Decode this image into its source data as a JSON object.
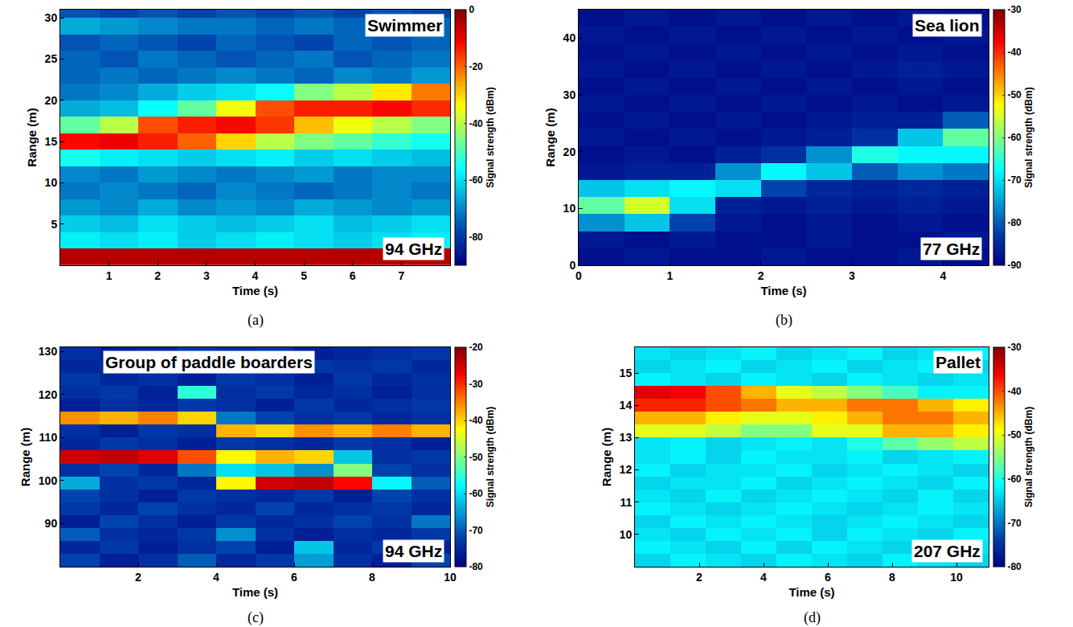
{
  "chart_data": [
    {
      "type": "heatmap",
      "title": "Swimmer",
      "annotations": [
        "94 GHz"
      ],
      "label": "(a)",
      "x_label": "Time (s)",
      "y_label": "Range (m)",
      "xlim": [
        0,
        8
      ],
      "xticks": [
        1,
        2,
        3,
        4,
        5,
        6,
        7
      ],
      "ylim": [
        0,
        31
      ],
      "yticks": [
        5,
        10,
        15,
        20,
        25,
        30
      ],
      "x": [
        0.4,
        1.2,
        2.0,
        2.8,
        3.6,
        4.4,
        5.2,
        6.0,
        6.8,
        7.6
      ],
      "y": [
        1,
        3,
        5,
        7,
        9,
        11,
        13,
        15,
        17,
        19,
        21,
        23,
        25,
        27,
        29,
        31
      ],
      "z": [
        [
          -5,
          -5,
          -5,
          -5,
          -5,
          -5,
          -5,
          -5,
          -5,
          -5
        ],
        [
          -58,
          -60,
          -58,
          -62,
          -60,
          -58,
          -60,
          -62,
          -60,
          -58
        ],
        [
          -62,
          -64,
          -60,
          -62,
          -64,
          -62,
          -60,
          -64,
          -62,
          -60
        ],
        [
          -68,
          -70,
          -66,
          -70,
          -68,
          -70,
          -66,
          -68,
          -70,
          -68
        ],
        [
          -72,
          -70,
          -72,
          -74,
          -70,
          -72,
          -74,
          -72,
          -70,
          -72
        ],
        [
          -70,
          -72,
          -68,
          -70,
          -72,
          -70,
          -68,
          -72,
          -70,
          -70
        ],
        [
          -55,
          -58,
          -60,
          -62,
          -60,
          -58,
          -62,
          -60,
          -62,
          -64
        ],
        [
          -12,
          -10,
          -14,
          -20,
          -30,
          -40,
          -45,
          -48,
          -52,
          -55
        ],
        [
          -48,
          -40,
          -18,
          -14,
          -12,
          -16,
          -28,
          -35,
          -40,
          -45
        ],
        [
          -66,
          -64,
          -56,
          -48,
          -35,
          -18,
          -14,
          -14,
          -12,
          -15
        ],
        [
          -72,
          -70,
          -66,
          -62,
          -60,
          -56,
          -45,
          -40,
          -32,
          -22
        ],
        [
          -74,
          -72,
          -74,
          -72,
          -70,
          -72,
          -74,
          -70,
          -72,
          -68
        ],
        [
          -74,
          -76,
          -72,
          -74,
          -76,
          -74,
          -72,
          -76,
          -74,
          -72
        ],
        [
          -76,
          -74,
          -76,
          -78,
          -74,
          -76,
          -78,
          -74,
          -76,
          -74
        ],
        [
          -66,
          -68,
          -70,
          -72,
          -72,
          -74,
          -72,
          -74,
          -72,
          -74
        ],
        [
          -76,
          -78,
          -76,
          -78,
          -76,
          -78,
          -76,
          -78,
          -76,
          -78
        ]
      ],
      "colorbar": {
        "title": "Signal strength (dBm)",
        "range": [
          -90,
          0
        ],
        "ticks": [
          0,
          -20,
          -40,
          -60,
          -80
        ]
      }
    },
    {
      "type": "heatmap",
      "title": "Sea lion",
      "annotations": [
        "77 GHz"
      ],
      "label": "(b)",
      "x_label": "Time (s)",
      "y_label": "Range (m)",
      "xlim": [
        0,
        4.5
      ],
      "xticks": [
        0,
        1,
        2,
        3,
        4
      ],
      "ylim": [
        0,
        45
      ],
      "yticks": [
        0,
        10,
        20,
        30,
        40
      ],
      "x": [
        0.25,
        0.75,
        1.25,
        1.75,
        2.25,
        2.75,
        3.25,
        3.75,
        4.25
      ],
      "y": [
        1.5,
        4.5,
        7.5,
        10.5,
        13.5,
        16.5,
        19.5,
        22.5,
        25.5,
        28.5,
        31.5,
        34.5,
        37.5,
        40.5,
        43.5
      ],
      "z": [
        [
          -88,
          -87,
          -88,
          -88,
          -87,
          -88,
          -88,
          -87,
          -88
        ],
        [
          -87,
          -88,
          -87,
          -88,
          -88,
          -87,
          -88,
          -88,
          -87
        ],
        [
          -76,
          -72,
          -82,
          -87,
          -88,
          -87,
          -88,
          -87,
          -88
        ],
        [
          -62,
          -55,
          -70,
          -86,
          -87,
          -86,
          -87,
          -86,
          -87
        ],
        [
          -72,
          -70,
          -68,
          -70,
          -82,
          -85,
          -86,
          -85,
          -86
        ],
        [
          -87,
          -86,
          -86,
          -76,
          -68,
          -72,
          -80,
          -76,
          -78
        ],
        [
          -88,
          -87,
          -88,
          -86,
          -84,
          -76,
          -66,
          -68,
          -68
        ],
        [
          -87,
          -88,
          -87,
          -88,
          -87,
          -86,
          -84,
          -72,
          -62
        ],
        [
          -88,
          -87,
          -88,
          -87,
          -88,
          -87,
          -86,
          -86,
          -80
        ],
        [
          -87,
          -88,
          -87,
          -88,
          -87,
          -88,
          -87,
          -88,
          -87
        ],
        [
          -88,
          -87,
          -88,
          -87,
          -88,
          -87,
          -88,
          -87,
          -88
        ],
        [
          -87,
          -88,
          -87,
          -88,
          -87,
          -88,
          -87,
          -86,
          -87
        ],
        [
          -88,
          -87,
          -88,
          -87,
          -88,
          -87,
          -88,
          -87,
          -88
        ],
        [
          -87,
          -88,
          -87,
          -88,
          -87,
          -88,
          -87,
          -88,
          -87
        ],
        [
          -88,
          -87,
          -88,
          -87,
          -88,
          -87,
          -88,
          -87,
          -88
        ]
      ],
      "colorbar": {
        "title": "Signal strength (dBm)",
        "range": [
          -90,
          -30
        ],
        "ticks": [
          -30,
          -40,
          -50,
          -60,
          -70,
          -80,
          -90
        ]
      }
    },
    {
      "type": "heatmap",
      "title": "Group of paddle boarders",
      "annotations": [
        "94 GHz"
      ],
      "label": "(c)",
      "x_label": "Time (s)",
      "y_label": "Range (m)",
      "xlim": [
        0,
        10
      ],
      "xticks": [
        2,
        4,
        6,
        8,
        10
      ],
      "ylim": [
        80,
        131
      ],
      "yticks": [
        90,
        100,
        110,
        120,
        130
      ],
      "x": [
        0.5,
        1.5,
        2.5,
        3.5,
        4.5,
        5.5,
        6.5,
        7.5,
        8.5,
        9.5
      ],
      "y": [
        81.5,
        84.5,
        87.5,
        90.5,
        93.5,
        96.5,
        99.5,
        102.5,
        105.5,
        108.5,
        111.5,
        114.5,
        117.5,
        120.5,
        123.5,
        126.5,
        129.5
      ],
      "z": [
        [
          -72,
          -76,
          -74,
          -70,
          -75,
          -73,
          -65,
          -74,
          -76,
          -72
        ],
        [
          -75,
          -73,
          -76,
          -74,
          -72,
          -76,
          -62,
          -75,
          -73,
          -76
        ],
        [
          -70,
          -74,
          -75,
          -73,
          -66,
          -74,
          -76,
          -74,
          -75,
          -73
        ],
        [
          -76,
          -72,
          -74,
          -76,
          -73,
          -75,
          -74,
          -72,
          -74,
          -68
        ],
        [
          -73,
          -75,
          -72,
          -74,
          -75,
          -72,
          -75,
          -74,
          -73,
          -75
        ],
        [
          -72,
          -74,
          -76,
          -73,
          -74,
          -75,
          -73,
          -76,
          -72,
          -74
        ],
        [
          -64,
          -74,
          -73,
          -75,
          -42,
          -25,
          -24,
          -28,
          -58,
          -70
        ],
        [
          -74,
          -72,
          -75,
          -68,
          -60,
          -62,
          -66,
          -50,
          -72,
          -74
        ],
        [
          -25,
          -24,
          -26,
          -32,
          -42,
          -38,
          -40,
          -62,
          -74,
          -73
        ],
        [
          -75,
          -73,
          -74,
          -76,
          -73,
          -74,
          -75,
          -73,
          -74,
          -76
        ],
        [
          -74,
          -76,
          -73,
          -74,
          -38,
          -40,
          -36,
          -38,
          -35,
          -38
        ],
        [
          -36,
          -38,
          -35,
          -40,
          -68,
          -72,
          -74,
          -73,
          -75,
          -74
        ],
        [
          -76,
          -74,
          -75,
          -73,
          -74,
          -76,
          -73,
          -75,
          -74,
          -73
        ],
        [
          -74,
          -73,
          -76,
          -55,
          -74,
          -73,
          -75,
          -74,
          -76,
          -74
        ],
        [
          -73,
          -75,
          -74,
          -76,
          -73,
          -74,
          -76,
          -73,
          -75,
          -74
        ],
        [
          -75,
          -74,
          -73,
          -74,
          -76,
          -75,
          -73,
          -74,
          -73,
          -75
        ],
        [
          -74,
          -76,
          -75,
          -73,
          -74,
          -73,
          -76,
          -75,
          -74,
          -73
        ]
      ],
      "colorbar": {
        "title": "Signal strength (dBm)",
        "range": [
          -80,
          -20
        ],
        "ticks": [
          -20,
          -30,
          -40,
          -50,
          -60,
          -70,
          -80
        ]
      }
    },
    {
      "type": "heatmap",
      "title": "Pallet",
      "annotations": [
        "207 GHz"
      ],
      "label": "(d)",
      "x_label": "Time (s)",
      "y_label": "Range (m)",
      "xlim": [
        0,
        11
      ],
      "xticks": [
        2,
        4,
        6,
        8,
        10
      ],
      "ylim": [
        9,
        15.8
      ],
      "yticks": [
        10,
        11,
        12,
        13,
        14,
        15
      ],
      "x": [
        0.55,
        1.65,
        2.75,
        3.85,
        4.95,
        6.05,
        7.15,
        8.25,
        9.35,
        10.45
      ],
      "y": [
        9.2,
        9.6,
        10.0,
        10.4,
        10.8,
        11.2,
        11.6,
        12.0,
        12.4,
        12.8,
        13.2,
        13.6,
        14.0,
        14.4,
        14.8,
        15.2,
        15.6
      ],
      "z": [
        [
          -64,
          -62,
          -63,
          -64,
          -62,
          -63,
          -64,
          -62,
          -63,
          -64
        ],
        [
          -62,
          -63,
          -64,
          -62,
          -64,
          -62,
          -63,
          -64,
          -62,
          -63
        ],
        [
          -63,
          -64,
          -62,
          -63,
          -62,
          -64,
          -62,
          -63,
          -64,
          -62
        ],
        [
          -64,
          -62,
          -63,
          -62,
          -63,
          -64,
          -63,
          -62,
          -63,
          -64
        ],
        [
          -62,
          -63,
          -64,
          -63,
          -62,
          -63,
          -64,
          -63,
          -62,
          -63
        ],
        [
          -63,
          -64,
          -62,
          -64,
          -63,
          -62,
          -63,
          -64,
          -62,
          -64
        ],
        [
          -64,
          -63,
          -63,
          -62,
          -64,
          -63,
          -62,
          -63,
          -64,
          -62
        ],
        [
          -62,
          -64,
          -63,
          -63,
          -62,
          -64,
          -63,
          -62,
          -63,
          -64
        ],
        [
          -63,
          -62,
          -64,
          -62,
          -63,
          -63,
          -62,
          -64,
          -63,
          -62
        ],
        [
          -63,
          -62,
          -64,
          -63,
          -62,
          -63,
          -60,
          -57,
          -54,
          -52
        ],
        [
          -50,
          -50,
          -52,
          -55,
          -55,
          -50,
          -50,
          -45,
          -45,
          -48
        ],
        [
          -45,
          -45,
          -48,
          -50,
          -50,
          -48,
          -45,
          -42,
          -42,
          -45
        ],
        [
          -38,
          -38,
          -40,
          -42,
          -45,
          -45,
          -42,
          -42,
          -45,
          -48
        ],
        [
          -35,
          -36,
          -40,
          -45,
          -50,
          -52,
          -55,
          -58,
          -62,
          -62
        ],
        [
          -62,
          -63,
          -64,
          -62,
          -63,
          -64,
          -62,
          -63,
          -64,
          -63
        ],
        [
          -64,
          -63,
          -62,
          -64,
          -63,
          -62,
          -64,
          -63,
          -62,
          -64
        ],
        [
          -63,
          -64,
          -63,
          -62,
          -64,
          -63,
          -62,
          -64,
          -63,
          -62
        ]
      ],
      "colorbar": {
        "title": "Signal strength (dBm)",
        "range": [
          -80,
          -30
        ],
        "ticks": [
          -30,
          -40,
          -50,
          -60,
          -70,
          -80
        ]
      }
    }
  ]
}
